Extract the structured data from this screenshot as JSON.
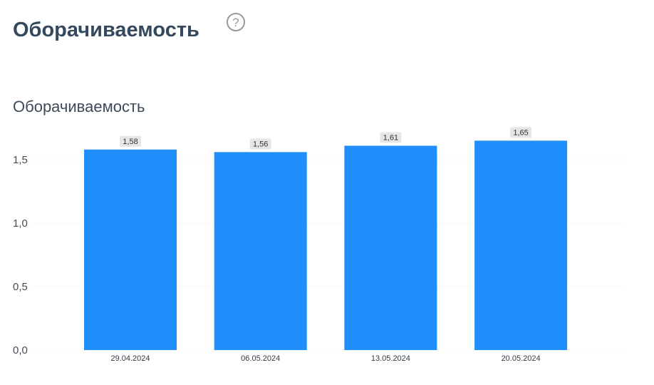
{
  "header": {
    "title": "Оборачиваемость",
    "help_icon": "question-circle-icon"
  },
  "chart_data": {
    "type": "bar",
    "title": "Оборачиваемость",
    "categories": [
      "29.04.2024",
      "06.05.2024",
      "13.05.2024",
      "20.05.2024"
    ],
    "values": [
      1.58,
      1.56,
      1.61,
      1.65
    ],
    "value_labels": [
      "1,58",
      "1,56",
      "1,61",
      "1,65"
    ],
    "ylim": [
      0,
      1.65
    ],
    "yticks": [
      0,
      0.5,
      1.0,
      1.5
    ],
    "ytick_labels": [
      "0,0",
      "0,5",
      "1,0",
      "1,5"
    ],
    "grid": true,
    "colors": {
      "bar": "#208ffc",
      "label_bg": "#e6e6e6"
    }
  }
}
